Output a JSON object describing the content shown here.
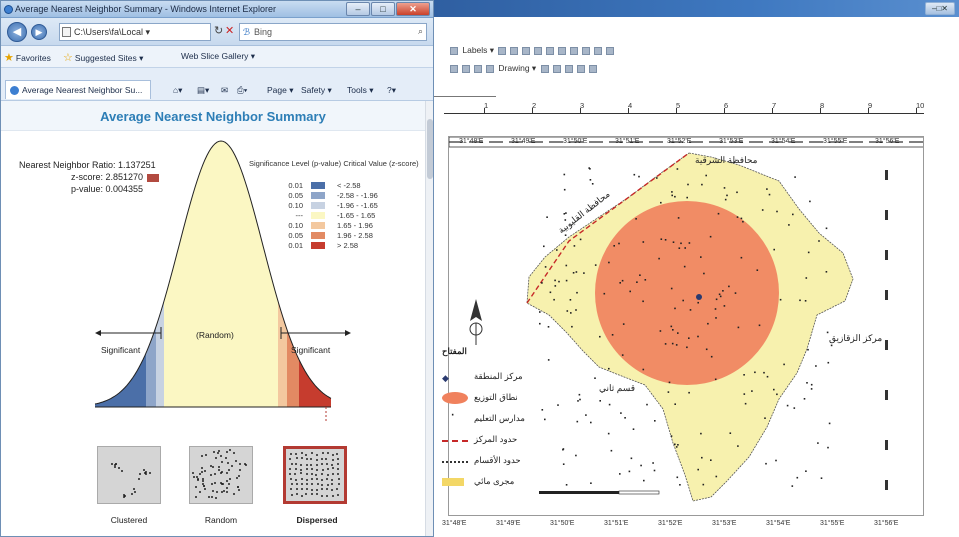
{
  "ie": {
    "title": "Average Nearest Neighbor Summary - Windows Internet Explorer",
    "window_buttons": {
      "minimize": "–",
      "maximize": "□",
      "close": "✕"
    },
    "address": "C:\\Users\\fa\\Local ▾",
    "search_placeholder": "Bing",
    "favorites_label": "Favorites",
    "suggested_sites": "Suggested Sites ▾",
    "web_slice": "Web Slice Gallery ▾",
    "tab_label": "Average Nearest Neighbor Su...",
    "commands": [
      "Page ▾",
      "Safety ▾",
      "Tools ▾",
      "?▾"
    ]
  },
  "report": {
    "title": "Average Nearest Neighbor Summary",
    "nn_ratio": "Nearest Neighbor Ratio: 1.137251",
    "z_score": "z-score: 2.851270",
    "p_value": "p-value: 0.004355",
    "legend_headers": {
      "sig": "Significance Level (p-value)",
      "crit": "Critical Value (z-score)"
    },
    "legend_rows": [
      {
        "sig": "0.01",
        "crit": "< -2.58",
        "color": "#4b6fa8"
      },
      {
        "sig": "0.05",
        "crit": "-2.58 - -1.96",
        "color": "#8ea5c9"
      },
      {
        "sig": "0.10",
        "crit": "-1.96 - -1.65",
        "color": "#c7d2e2"
      },
      {
        "sig": "---",
        "crit": "-1.65 - 1.65",
        "color": "#fbf7c3"
      },
      {
        "sig": "0.10",
        "crit": "1.65 - 1.96",
        "color": "#f3c89f"
      },
      {
        "sig": "0.05",
        "crit": "1.96 - 2.58",
        "color": "#e28a63"
      },
      {
        "sig": "0.01",
        "crit": "> 2.58",
        "color": "#c63c2e"
      }
    ],
    "zone_labels": {
      "left": "Significant",
      "center": "(Random)",
      "right": "Significant"
    },
    "patterns": [
      "Clustered",
      "Random",
      "Dispersed"
    ],
    "selected_pattern": "Dispersed"
  },
  "arc": {
    "toolbar_row1": "Labels ▾",
    "toolbar_row2": "Drawing ▾",
    "ruler_numbers": [
      "1",
      "2",
      "3",
      "4",
      "5",
      "6",
      "7",
      "8",
      "9",
      "10"
    ],
    "top_coords": [
      "31°48'E",
      "31°49'E",
      "31°50'E",
      "31°51'E",
      "31°52'E",
      "31°53'E",
      "31°54'E",
      "31°55'E",
      "31°56'E"
    ],
    "bottom_coords": [
      "31°48'E",
      "31°49'E",
      "31°50'E",
      "31°51'E",
      "31°52'E",
      "31°53'E",
      "31°54'E",
      "31°55'E",
      "31°56'E"
    ],
    "map_labels": {
      "top": "محافظة الشرقية",
      "diagonal": "محافظة القليوبية",
      "right": "مركز الزقازيق",
      "center_left": "قسم ثاني"
    },
    "legend_title": "المفتاح",
    "legend_items": [
      {
        "label": "مركز المنطقة",
        "symbol": "point"
      },
      {
        "label": "نطاق التوزيع",
        "symbol": "ellipse"
      },
      {
        "label": "مدارس التعليم",
        "symbol": "dot"
      },
      {
        "label": "حدود المركز",
        "symbol": "redline"
      },
      {
        "label": "حدود الأقسام",
        "symbol": "dashed"
      },
      {
        "label": "مجرى مائي",
        "symbol": "yellow"
      }
    ]
  }
}
